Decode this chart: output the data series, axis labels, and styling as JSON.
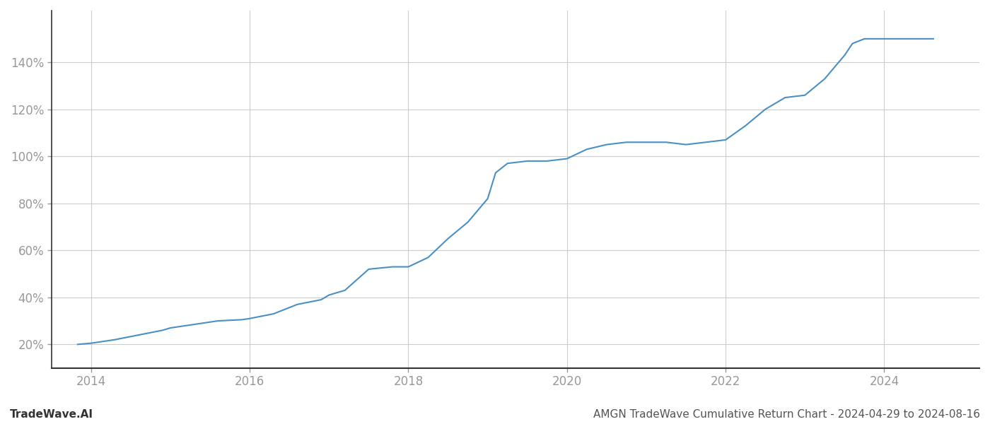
{
  "title": "AMGN TradeWave Cumulative Return Chart - 2024-04-29 to 2024-08-16",
  "watermark": "TradeWave.AI",
  "line_color": "#4a90c4",
  "background_color": "#ffffff",
  "grid_color": "#cccccc",
  "x_values": [
    2013.83,
    2014.0,
    2014.3,
    2014.6,
    2014.9,
    2015.0,
    2015.3,
    2015.6,
    2015.9,
    2016.0,
    2016.3,
    2016.6,
    2016.9,
    2017.0,
    2017.2,
    2017.5,
    2017.8,
    2018.0,
    2018.25,
    2018.5,
    2018.75,
    2019.0,
    2019.1,
    2019.25,
    2019.5,
    2019.75,
    2020.0,
    2020.25,
    2020.5,
    2020.75,
    2021.0,
    2021.25,
    2021.5,
    2021.75,
    2022.0,
    2022.25,
    2022.5,
    2022.75,
    2023.0,
    2023.25,
    2023.5,
    2023.6,
    2023.75,
    2024.0,
    2024.3,
    2024.62
  ],
  "y_values": [
    20,
    20.5,
    22,
    24,
    26,
    27,
    28.5,
    30,
    30.5,
    31,
    33,
    37,
    39,
    41,
    43,
    52,
    53,
    53,
    57,
    65,
    72,
    82,
    93,
    97,
    98,
    98,
    99,
    103,
    105,
    106,
    106,
    106,
    105,
    106,
    107,
    113,
    120,
    125,
    126,
    133,
    143,
    148,
    150,
    150,
    150,
    150
  ],
  "xlim": [
    2013.5,
    2025.2
  ],
  "ylim": [
    10,
    162
  ],
  "xticks": [
    2014,
    2016,
    2018,
    2020,
    2022,
    2024
  ],
  "yticks": [
    20,
    40,
    60,
    80,
    100,
    120,
    140
  ],
  "line_width": 1.5,
  "title_fontsize": 11,
  "tick_fontsize": 12,
  "watermark_fontsize": 11,
  "tick_color": "#999999",
  "title_color": "#555555",
  "spine_color": "#333333"
}
